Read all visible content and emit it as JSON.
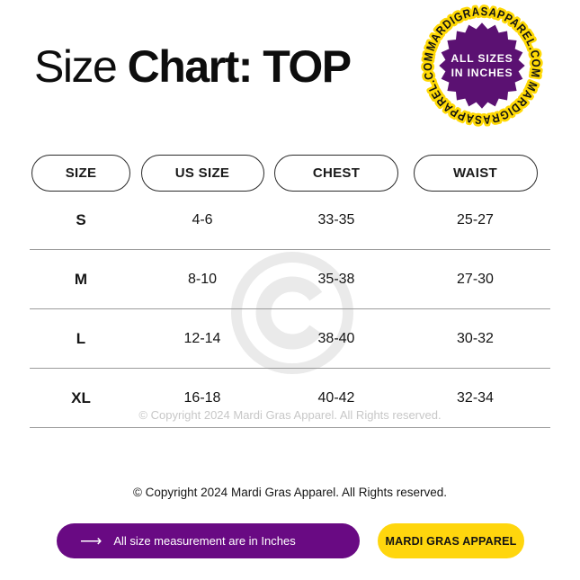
{
  "title": {
    "regular": "Size ",
    "bold": "Chart: TOP"
  },
  "badge": {
    "ring_text": "MARDIGRASAPPAREL.COM MARDIGRASAPPAREL.COM",
    "center_line1": "ALL SIZES",
    "center_line2": "IN INCHES",
    "ring_color": "#FFD905",
    "seal_color": "#5B1172"
  },
  "table": {
    "headers": [
      "SIZE",
      "US SIZE",
      "CHEST",
      "WAIST"
    ],
    "rows": [
      {
        "size": "S",
        "us_size": "4-6",
        "chest": "33-35",
        "waist": "25-27"
      },
      {
        "size": "M",
        "us_size": "8-10",
        "chest": "35-38",
        "waist": "27-30"
      },
      {
        "size": "L",
        "us_size": "12-14",
        "chest": "38-40",
        "waist": "30-32"
      },
      {
        "size": "XL",
        "us_size": "16-18",
        "chest": "40-42",
        "waist": "32-34"
      }
    ]
  },
  "watermark": {
    "copyright_text": "© Copyright 2024 Mardi Gras Apparel. All Rights reserved."
  },
  "footer": {
    "copyright": "© Copyright 2024 Mardi Gras Apparel. All Rights reserved.",
    "note_button": {
      "arrow": "⟶",
      "label": "All size measurement are in Inches",
      "color": "#690A83"
    },
    "brand_button": {
      "label": "MARDI GRAS APPAREL",
      "color": "#FFD60D"
    }
  }
}
